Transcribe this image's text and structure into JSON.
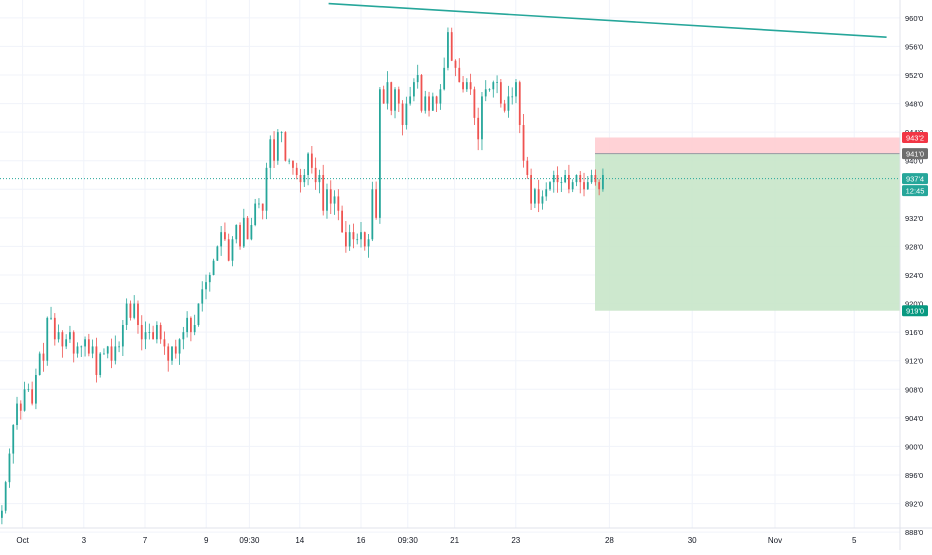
{
  "chart_data": {
    "type": "candlestick",
    "title": "",
    "y_axis": {
      "ticks": [
        "960'0",
        "956'0",
        "952'0",
        "948'0",
        "944'0",
        "940'0",
        "936'0",
        "932'0",
        "928'0",
        "924'0",
        "920'0",
        "916'0",
        "912'0",
        "908'0",
        "904'0",
        "900'0",
        "896'0",
        "892'0",
        "888'0"
      ],
      "tick_values": [
        960,
        956,
        952,
        948,
        944,
        940,
        936,
        932,
        928,
        924,
        920,
        916,
        912,
        908,
        904,
        900,
        896,
        892,
        888
      ],
      "range": [
        885.5,
        962.5
      ]
    },
    "x_axis": {
      "ticks": [
        "Oct",
        "3",
        "7",
        "9",
        "09:30",
        "14",
        "16",
        "09:30",
        "21",
        "23",
        "28",
        "30",
        "Nov",
        "5"
      ],
      "range_bars": [
        0,
        250
      ]
    },
    "price_labels": {
      "stop_loss": {
        "text": "943'2",
        "value": 943.25,
        "color": "#f23645"
      },
      "entry": {
        "text": "941'0",
        "value": 941.0,
        "color": "#6d6d6d"
      },
      "current": {
        "text": "937'4",
        "value": 937.5,
        "color": "#26a69a"
      },
      "countdown": {
        "text": "12:45",
        "color": "#26a69a"
      },
      "target": {
        "text": "919'0",
        "value": 919.0,
        "color": "#089981"
      }
    },
    "short_position": {
      "entry": 941.0,
      "stop": 943.25,
      "target": 919.0,
      "start_date": "Oct 27",
      "risk_color": "#ffcdd2",
      "reward_color": "#c8e6c9"
    },
    "trendline": {
      "points": [
        {
          "date": "Oct 15",
          "value": 962.0
        },
        {
          "date": "Nov 6",
          "value": 957.3
        }
      ],
      "color": "#26a69a"
    },
    "series": [
      {
        "close": [
          891,
          895,
          899,
          903,
          906,
          905,
          908,
          908,
          906,
          910,
          913,
          912,
          918,
          918,
          915,
          916,
          914,
          915,
          916,
          913,
          914,
          914,
          915,
          913,
          914,
          910,
          913,
          913,
          914,
          912,
          914,
          914,
          917,
          920,
          918,
          920,
          917,
          915,
          916,
          916,
          915,
          917,
          915,
          914,
          912,
          914,
          913,
          915,
          916,
          918,
          916,
          917,
          920,
          922,
          923,
          924,
          926,
          928,
          930,
          929,
          926,
          929,
          931,
          928,
          932,
          929,
          931,
          934,
          934,
          933,
          939,
          943,
          940,
          944,
          944,
          940,
          940,
          939,
          938,
          937,
          938,
          941,
          939,
          937,
          938,
          933,
          936,
          934,
          935,
          933,
          930,
          928,
          930,
          929,
          929,
          930,
          928,
          929,
          936,
          932,
          950,
          948,
          951,
          947,
          950,
          948,
          945,
          948,
          949,
          951,
          952,
          947,
          949,
          947,
          949,
          948,
          950,
          953,
          958,
          954,
          953,
          951,
          950,
          951,
          950,
          946,
          943,
          949,
          950,
          950,
          951,
          951,
          948,
          947,
          949,
          949,
          951,
          945,
          940,
          938,
          934,
          936,
          934,
          935,
          936,
          937,
          938,
          937,
          937,
          938,
          936,
          937,
          938,
          937,
          936,
          937,
          938,
          937,
          936,
          938
        ]
      }
    ],
    "grid": true,
    "legend": "none",
    "colors": {
      "up": "#26a69a",
      "down": "#ef5350"
    }
  }
}
